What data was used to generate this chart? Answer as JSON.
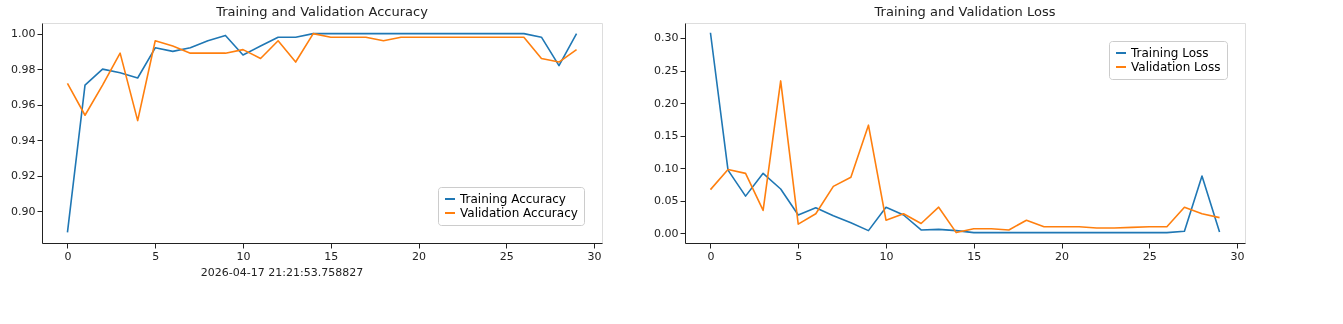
{
  "chart_data": [
    {
      "type": "line",
      "title": "Training and Validation Accuracy",
      "x": [
        0,
        1,
        2,
        3,
        4,
        5,
        6,
        7,
        8,
        9,
        10,
        11,
        12,
        13,
        14,
        15,
        16,
        17,
        18,
        19,
        20,
        21,
        22,
        23,
        24,
        25,
        26,
        27,
        28,
        29
      ],
      "series": [
        {
          "name": "Training Accuracy",
          "color": "#1f77b4",
          "values": [
            0.888,
            0.971,
            0.98,
            0.978,
            0.975,
            0.992,
            0.99,
            0.992,
            0.996,
            0.999,
            0.988,
            0.993,
            0.998,
            0.998,
            1.0,
            1.0,
            1.0,
            1.0,
            1.0,
            1.0,
            1.0,
            1.0,
            1.0,
            1.0,
            1.0,
            1.0,
            1.0,
            0.998,
            0.982,
            1.0
          ]
        },
        {
          "name": "Validation Accuracy",
          "color": "#ff7f0e",
          "values": [
            0.972,
            0.954,
            0.971,
            0.989,
            0.951,
            0.996,
            0.993,
            0.989,
            0.989,
            0.989,
            0.991,
            0.986,
            0.996,
            0.984,
            1.0,
            0.998,
            0.998,
            0.998,
            0.996,
            0.998,
            0.998,
            0.998,
            0.998,
            0.998,
            0.998,
            0.998,
            0.998,
            0.986,
            0.984,
            0.991
          ]
        }
      ],
      "xlim": [
        -1.45,
        30.45
      ],
      "xticks": [
        0,
        5,
        10,
        15,
        20,
        25,
        30
      ],
      "ylim": [
        0.882,
        1.006
      ],
      "yticks": [
        {
          "value": 0.9,
          "label": "0.90"
        },
        {
          "value": 0.92,
          "label": "0.92"
        },
        {
          "value": 0.94,
          "label": "0.94"
        },
        {
          "value": 0.96,
          "label": "0.96"
        },
        {
          "value": 0.98,
          "label": "0.98"
        },
        {
          "value": 1.0,
          "label": "1.00"
        }
      ],
      "grid": false,
      "legend": "bottom right",
      "annotations": [
        "2026-04-17 21:21:53.758827"
      ]
    },
    {
      "type": "line",
      "title": "Training and Validation Loss",
      "x": [
        0,
        1,
        2,
        3,
        4,
        5,
        6,
        7,
        8,
        9,
        10,
        11,
        12,
        13,
        14,
        15,
        16,
        17,
        18,
        19,
        20,
        21,
        22,
        23,
        24,
        25,
        26,
        27,
        28,
        29
      ],
      "series": [
        {
          "name": "Training Loss",
          "color": "#1f77b4",
          "values": [
            0.308,
            0.097,
            0.057,
            0.092,
            0.068,
            0.028,
            0.039,
            0.027,
            0.016,
            0.004,
            0.04,
            0.028,
            0.005,
            0.006,
            0.004,
            0.001,
            0.001,
            0.001,
            0.001,
            0.001,
            0.001,
            0.001,
            0.001,
            0.001,
            0.001,
            0.001,
            0.001,
            0.003,
            0.088,
            0.002
          ]
        },
        {
          "name": "Validation Loss",
          "color": "#ff7f0e",
          "values": [
            0.067,
            0.098,
            0.092,
            0.035,
            0.234,
            0.014,
            0.03,
            0.072,
            0.086,
            0.166,
            0.02,
            0.03,
            0.015,
            0.04,
            0.001,
            0.007,
            0.007,
            0.005,
            0.02,
            0.01,
            0.01,
            0.01,
            0.008,
            0.008,
            0.009,
            0.01,
            0.01,
            0.04,
            0.03,
            0.024
          ]
        }
      ],
      "xlim": [
        -1.45,
        30.45
      ],
      "xticks": [
        0,
        5,
        10,
        15,
        20,
        25,
        30
      ],
      "ylim": [
        -0.015,
        0.323
      ],
      "yticks": [
        {
          "value": 0,
          "label": "0.00"
        },
        {
          "value": 0.05,
          "label": "0.05"
        },
        {
          "value": 0.1,
          "label": "0.10"
        },
        {
          "value": 0.15,
          "label": "0.15"
        },
        {
          "value": 0.2,
          "label": "0.20"
        },
        {
          "value": 0.25,
          "label": "0.25"
        },
        {
          "value": 0.3,
          "label": "0.30"
        }
      ],
      "grid": false,
      "legend": "top right"
    }
  ]
}
